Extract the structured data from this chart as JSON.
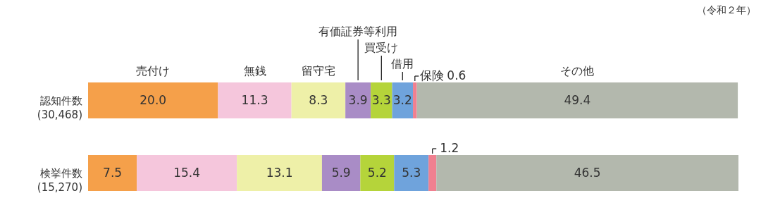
{
  "chart_data": {
    "type": "bar",
    "orientation": "horizontal",
    "stacked": true,
    "legend": false,
    "categories": [
      "認知件数\n(30,468)",
      "検挙件数\n(15,270)"
    ],
    "series": [
      {
        "name": "売付け",
        "color": "#f5a04a",
        "values": [
          20.0,
          7.5
        ],
        "value_labels": [
          "20.0",
          "7.5"
        ]
      },
      {
        "name": "無銭",
        "color": "#f5c6dc",
        "values": [
          11.3,
          15.4
        ],
        "value_labels": [
          "11.3",
          "15.4"
        ]
      },
      {
        "name": "留守宅",
        "color": "#eef0a8",
        "values": [
          8.3,
          13.1
        ],
        "value_labels": [
          "8.3",
          "13.1"
        ]
      },
      {
        "name": "有価証券等利用",
        "color": "#a98cc6",
        "values": [
          3.9,
          5.9
        ],
        "value_labels": [
          "3.9",
          "5.9"
        ]
      },
      {
        "name": "買受け",
        "color": "#b5d43a",
        "values": [
          3.3,
          5.2
        ],
        "value_labels": [
          "3.3",
          "5.2"
        ]
      },
      {
        "name": "借用",
        "color": "#6fa3dc",
        "values": [
          3.2,
          5.3
        ],
        "value_labels": [
          "3.2",
          "5.3"
        ]
      },
      {
        "name": "保険",
        "color": "#f08090",
        "values": [
          0.6,
          1.2
        ],
        "value_labels": [
          "0.6",
          "1.2"
        ]
      },
      {
        "name": "その他",
        "color": "#b3b8ad",
        "values": [
          49.4,
          46.5
        ],
        "value_labels": [
          "49.4",
          "46.5"
        ]
      }
    ],
    "annotations": [
      "（令和２年）"
    ]
  }
}
